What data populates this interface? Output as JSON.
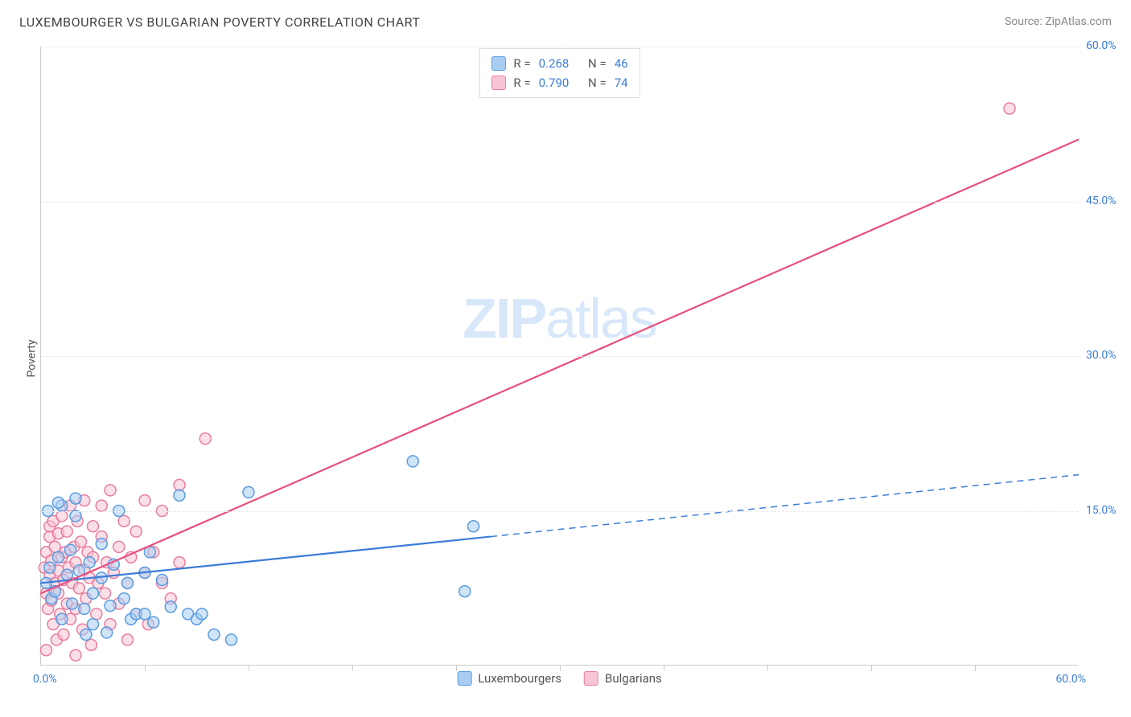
{
  "header": {
    "title": "LUXEMBOURGER VS BULGARIAN POVERTY CORRELATION CHART",
    "source": "Source: ZipAtlas.com"
  },
  "axis": {
    "y_title": "Poverty",
    "x_min_label": "0.0%",
    "x_max_label": "60.0%"
  },
  "watermark": {
    "zip": "ZIP",
    "atlas": "atlas"
  },
  "chart": {
    "xlim": [
      0,
      60
    ],
    "ylim": [
      0,
      60
    ],
    "yticks": [
      {
        "value": 15,
        "label": "15.0%"
      },
      {
        "value": 30,
        "label": "30.0%"
      },
      {
        "value": 45,
        "label": "45.0%"
      },
      {
        "value": 60,
        "label": "60.0%"
      }
    ],
    "xticks_minor": [
      6,
      12,
      18,
      24,
      30,
      36,
      42,
      48,
      54
    ],
    "grid_color": "#e8e8e8",
    "tick_color": "#cccccc",
    "point_radius": 7,
    "point_opacity": 0.55,
    "point_stroke_width": 1.5,
    "series": {
      "lux": {
        "label": "Luxembourgers",
        "fill": "#a9cdf2",
        "stroke": "#5a9ce0",
        "reg_color": "#3b7dd8",
        "reg_width": 2.2,
        "reg_solid_x": [
          0,
          26
        ],
        "reg_y_at_solid": [
          8,
          12.5
        ],
        "reg_dash_x": [
          26,
          60
        ],
        "reg_y_at_dash": [
          12.5,
          18.5
        ],
        "points": [
          [
            0.3,
            8.0
          ],
          [
            0.5,
            9.5
          ],
          [
            0.6,
            6.5
          ],
          [
            0.8,
            7.2
          ],
          [
            1.0,
            10.5
          ],
          [
            1.2,
            4.5
          ],
          [
            1.2,
            15.5
          ],
          [
            1.5,
            8.8
          ],
          [
            1.7,
            11.2
          ],
          [
            1.8,
            6.0
          ],
          [
            2.0,
            14.5
          ],
          [
            2.2,
            9.2
          ],
          [
            2.5,
            5.5
          ],
          [
            2.6,
            3.0
          ],
          [
            2.8,
            10.0
          ],
          [
            3.0,
            7.0
          ],
          [
            3.0,
            4.0
          ],
          [
            3.5,
            8.5
          ],
          [
            3.5,
            11.8
          ],
          [
            3.8,
            3.2
          ],
          [
            4.0,
            5.8
          ],
          [
            4.2,
            9.8
          ],
          [
            4.5,
            15.0
          ],
          [
            4.8,
            6.5
          ],
          [
            5.0,
            8.0
          ],
          [
            5.2,
            4.5
          ],
          [
            5.5,
            5.0
          ],
          [
            6.0,
            9.0
          ],
          [
            6.0,
            5.0
          ],
          [
            6.3,
            11.0
          ],
          [
            6.5,
            4.2
          ],
          [
            7.0,
            8.3
          ],
          [
            7.5,
            5.7
          ],
          [
            8.0,
            16.5
          ],
          [
            8.5,
            5.0
          ],
          [
            9.0,
            4.5
          ],
          [
            9.3,
            5.0
          ],
          [
            10.0,
            3.0
          ],
          [
            11.0,
            2.5
          ],
          [
            12.0,
            16.8
          ],
          [
            21.5,
            19.8
          ],
          [
            25.0,
            13.5
          ],
          [
            24.5,
            7.2
          ],
          [
            1.0,
            15.8
          ],
          [
            2.0,
            16.2
          ],
          [
            0.4,
            15.0
          ]
        ]
      },
      "bul": {
        "label": "Bulgarians",
        "fill": "#f7c5d4",
        "stroke": "#e87ea0",
        "reg_color": "#e94f7e",
        "reg_width": 2.2,
        "reg_x": [
          0,
          60
        ],
        "reg_y": [
          7,
          51
        ],
        "points": [
          [
            0.2,
            9.5
          ],
          [
            0.3,
            7.0
          ],
          [
            0.3,
            11.0
          ],
          [
            0.4,
            5.5
          ],
          [
            0.5,
            8.8
          ],
          [
            0.5,
            12.5
          ],
          [
            0.5,
            13.5
          ],
          [
            0.6,
            6.3
          ],
          [
            0.6,
            10.2
          ],
          [
            0.7,
            4.0
          ],
          [
            0.7,
            14.0
          ],
          [
            0.8,
            8.0
          ],
          [
            0.8,
            11.5
          ],
          [
            0.9,
            2.5
          ],
          [
            1.0,
            9.2
          ],
          [
            1.0,
            12.8
          ],
          [
            1.0,
            7.0
          ],
          [
            1.1,
            5.0
          ],
          [
            1.2,
            10.5
          ],
          [
            1.2,
            14.5
          ],
          [
            1.3,
            3.0
          ],
          [
            1.3,
            8.3
          ],
          [
            1.4,
            11.0
          ],
          [
            1.5,
            6.0
          ],
          [
            1.5,
            13.0
          ],
          [
            1.6,
            9.5
          ],
          [
            1.7,
            4.5
          ],
          [
            1.7,
            15.5
          ],
          [
            1.8,
            8.0
          ],
          [
            1.9,
            11.5
          ],
          [
            2.0,
            5.5
          ],
          [
            2.0,
            10.0
          ],
          [
            2.1,
            14.0
          ],
          [
            2.2,
            7.5
          ],
          [
            2.3,
            12.0
          ],
          [
            2.4,
            3.5
          ],
          [
            2.5,
            9.3
          ],
          [
            2.5,
            16.0
          ],
          [
            2.6,
            6.5
          ],
          [
            2.7,
            11.0
          ],
          [
            2.8,
            8.5
          ],
          [
            2.9,
            2.0
          ],
          [
            3.0,
            10.5
          ],
          [
            3.0,
            13.5
          ],
          [
            3.2,
            5.0
          ],
          [
            3.3,
            8.0
          ],
          [
            3.5,
            12.5
          ],
          [
            3.5,
            15.5
          ],
          [
            3.7,
            7.0
          ],
          [
            3.8,
            10.0
          ],
          [
            4.0,
            4.0
          ],
          [
            4.0,
            17.0
          ],
          [
            4.2,
            9.0
          ],
          [
            4.5,
            6.0
          ],
          [
            4.5,
            11.5
          ],
          [
            4.8,
            14.0
          ],
          [
            5.0,
            8.0
          ],
          [
            5.0,
            2.5
          ],
          [
            5.2,
            10.5
          ],
          [
            5.5,
            13.0
          ],
          [
            5.5,
            5.0
          ],
          [
            6.0,
            9.0
          ],
          [
            6.0,
            16.0
          ],
          [
            6.2,
            4.0
          ],
          [
            6.5,
            11.0
          ],
          [
            7.0,
            8.0
          ],
          [
            7.0,
            15.0
          ],
          [
            7.5,
            6.5
          ],
          [
            8.0,
            10.0
          ],
          [
            8.0,
            17.5
          ],
          [
            9.5,
            22.0
          ],
          [
            0.3,
            1.5
          ],
          [
            2.0,
            1.0
          ],
          [
            56.0,
            54.0
          ]
        ]
      }
    }
  },
  "legend_stats": {
    "row1": {
      "r_label": "R =",
      "r_val": "0.268",
      "n_label": "N =",
      "n_val": "46"
    },
    "row2": {
      "r_label": "R =",
      "r_val": "0.790",
      "n_label": "N =",
      "n_val": "74"
    }
  }
}
